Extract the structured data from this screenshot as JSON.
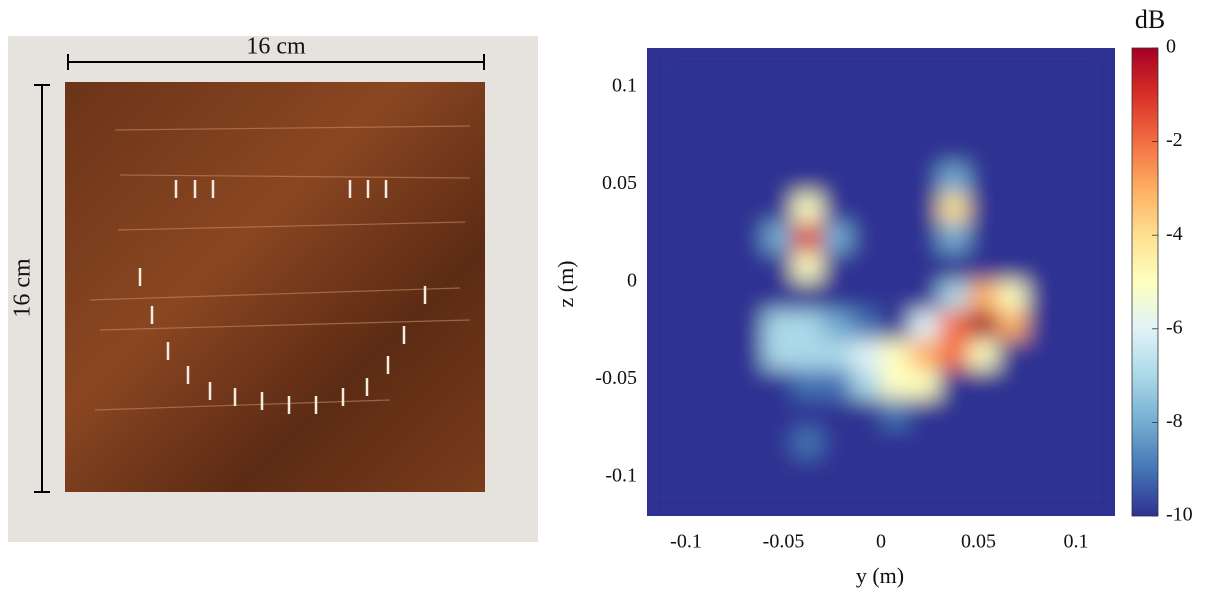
{
  "photo": {
    "width_label": "16 cm",
    "height_label": "16 cm"
  },
  "chart_data": {
    "type": "heatmap",
    "xlabel": "y (m)",
    "ylabel": "z (m)",
    "colorbar_label": "dB",
    "xlim": [
      -0.12,
      0.12
    ],
    "ylim": [
      -0.12,
      0.12
    ],
    "xticks": [
      -0.1,
      -0.05,
      0,
      0.05,
      0.1
    ],
    "yticks": [
      -0.1,
      -0.05,
      0,
      0.05,
      0.1
    ],
    "clim": [
      -10,
      0
    ],
    "cticks": [
      -10,
      -8,
      -6,
      -4,
      -2,
      0
    ],
    "colormap": [
      "#2e3192",
      "#4575b4",
      "#74add1",
      "#abd9e9",
      "#e0f3f8",
      "#ffffbf",
      "#fee090",
      "#fdae61",
      "#f46d43",
      "#d73027",
      "#a50026"
    ],
    "x": [
      -0.1125,
      -0.0975,
      -0.0825,
      -0.0675,
      -0.0525,
      -0.0375,
      -0.0225,
      -0.0075,
      0.0075,
      0.0225,
      0.0375,
      0.0525,
      0.0675,
      0.0825,
      0.0975,
      0.1125
    ],
    "y": [
      0.1125,
      0.0975,
      0.0825,
      0.0675,
      0.0525,
      0.0375,
      0.0225,
      0.0075,
      -0.0075,
      -0.0225,
      -0.0375,
      -0.0525,
      -0.0675,
      -0.0825,
      -0.0975,
      -0.1125
    ],
    "values": [
      [
        -10,
        -10,
        -10,
        -10,
        -10,
        -10,
        -10,
        -10,
        -10,
        -10,
        -10,
        -10,
        -10,
        -10,
        -10,
        -10
      ],
      [
        -10,
        -10,
        -10,
        -10,
        -10,
        -10,
        -10,
        -10,
        -10,
        -10,
        -10,
        -10,
        -10,
        -10,
        -10,
        -10
      ],
      [
        -10,
        -10,
        -10,
        -10,
        -10,
        -10,
        -10,
        -10,
        -10,
        -10,
        -10,
        -10,
        -10,
        -10,
        -10,
        -10
      ],
      [
        -10,
        -10,
        -10,
        -10,
        -10,
        -10,
        -10,
        -10,
        -10,
        -10,
        -10,
        -10,
        -10,
        -10,
        -10,
        -10
      ],
      [
        -10,
        -10,
        -10,
        -10,
        -10,
        -10,
        -10,
        -10,
        -10,
        -10,
        -8,
        -10,
        -10,
        -10,
        -10,
        -10
      ],
      [
        -10,
        -10,
        -10,
        -10,
        -10,
        -5,
        -10,
        -10,
        -10,
        -10,
        -4,
        -10,
        -10,
        -10,
        -10,
        -10
      ],
      [
        -10,
        -10,
        -10,
        -10,
        -8,
        -1,
        -8,
        -10,
        -10,
        -10,
        -8,
        -10,
        -10,
        -10,
        -10,
        -10
      ],
      [
        -10,
        -10,
        -10,
        -10,
        -10,
        -5,
        -10,
        -10,
        -10,
        -10,
        -10,
        -10,
        -10,
        -10,
        -10,
        -10
      ],
      [
        -10,
        -10,
        -10,
        -10,
        -10,
        -10,
        -10,
        -10,
        -10,
        -10,
        -7,
        -3,
        -5,
        -10,
        -10,
        -10
      ],
      [
        -10,
        -10,
        -10,
        -10,
        -7,
        -7,
        -8,
        -9,
        -10,
        -6,
        -2,
        0,
        -3,
        -10,
        -10,
        -10
      ],
      [
        -10,
        -10,
        -10,
        -10,
        -7,
        -7,
        -7,
        -6,
        -5,
        -3,
        -2,
        -5,
        -10,
        -10,
        -10,
        -10
      ],
      [
        -10,
        -10,
        -10,
        -10,
        -10,
        -9,
        -9,
        -7,
        -5,
        -5,
        -10,
        -10,
        -10,
        -10,
        -10,
        -10
      ],
      [
        -10,
        -10,
        -10,
        -10,
        -10,
        -10,
        -10,
        -10,
        -9,
        -10,
        -10,
        -10,
        -10,
        -10,
        -10,
        -10
      ],
      [
        -10,
        -10,
        -10,
        -10,
        -10,
        -9,
        -10,
        -10,
        -10,
        -10,
        -10,
        -10,
        -10,
        -10,
        -10,
        -10
      ],
      [
        -10,
        -10,
        -10,
        -10,
        -10,
        -10,
        -10,
        -10,
        -10,
        -10,
        -10,
        -10,
        -10,
        -10,
        -10,
        -10
      ],
      [
        -10,
        -10,
        -10,
        -10,
        -10,
        -10,
        -10,
        -10,
        -10,
        -10,
        -10,
        -10,
        -10,
        -10,
        -10,
        -10
      ]
    ]
  }
}
